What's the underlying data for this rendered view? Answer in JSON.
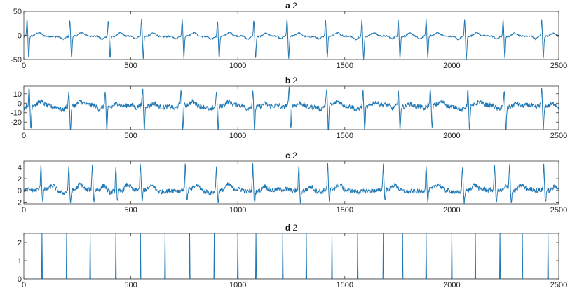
{
  "figure": {
    "line_color": "#1f77b4",
    "axis_color": "#3a3a3a",
    "background": "#ffffff"
  },
  "chart_data": [
    {
      "type": "line",
      "title_letter": "a",
      "title_number": "2",
      "xlim": [
        0,
        2500
      ],
      "ylim": [
        -50,
        50
      ],
      "xticks": [
        0,
        500,
        1000,
        1500,
        2000,
        2500
      ],
      "yticks": [
        -50,
        0,
        50
      ],
      "beats": [
        15,
        215,
        395,
        550,
        740,
        905,
        1075,
        1230,
        1410,
        1580,
        1750,
        1880,
        2060,
        2240,
        2420
      ],
      "beat_shape": {
        "peak": 35,
        "trough": -46,
        "baseline": -2,
        "noise": 3
      }
    },
    {
      "type": "line",
      "title_letter": "b",
      "title_number": "2",
      "xlim": [
        0,
        2500
      ],
      "ylim": [
        -28,
        18
      ],
      "xticks": [
        0,
        500,
        1000,
        1500,
        2000,
        2500
      ],
      "yticks": [
        -20,
        -10,
        0,
        10
      ],
      "beats": [
        25,
        210,
        380,
        555,
        735,
        900,
        1070,
        1240,
        1415,
        1585,
        1750,
        1900,
        2075,
        2245,
        2420
      ],
      "beat_shape": {
        "peak": 18,
        "trough": -26,
        "baseline": -3,
        "noise": 5
      }
    },
    {
      "type": "line",
      "title_letter": "c",
      "title_number": "2",
      "xlim": [
        0,
        2500
      ],
      "ylim": [
        -2.3,
        5
      ],
      "xticks": [
        0,
        500,
        1000,
        1500,
        2000,
        2500
      ],
      "yticks": [
        -2,
        0,
        2,
        4
      ],
      "beats": [
        80,
        210,
        320,
        430,
        545,
        755,
        900,
        1070,
        1285,
        1420,
        1680,
        1880,
        2050,
        2200,
        2270,
        2430
      ],
      "beat_shape": {
        "peak": 4.4,
        "trough": -2.0,
        "baseline": 0,
        "noise": 0.8
      }
    },
    {
      "type": "line",
      "title_letter": "d",
      "title_number": "2",
      "xlim": [
        0,
        2500
      ],
      "ylim": [
        0,
        2.5
      ],
      "xticks": [
        0,
        500,
        1000,
        1500,
        2000,
        2500
      ],
      "yticks": [
        0,
        1,
        2
      ],
      "spikes": [
        85,
        200,
        310,
        430,
        545,
        660,
        775,
        890,
        1000,
        1085,
        1210,
        1320,
        1440,
        1560,
        1680,
        1770,
        1880,
        2000,
        2110,
        2225,
        2330,
        2450
      ],
      "spike_value": 2.5
    }
  ]
}
